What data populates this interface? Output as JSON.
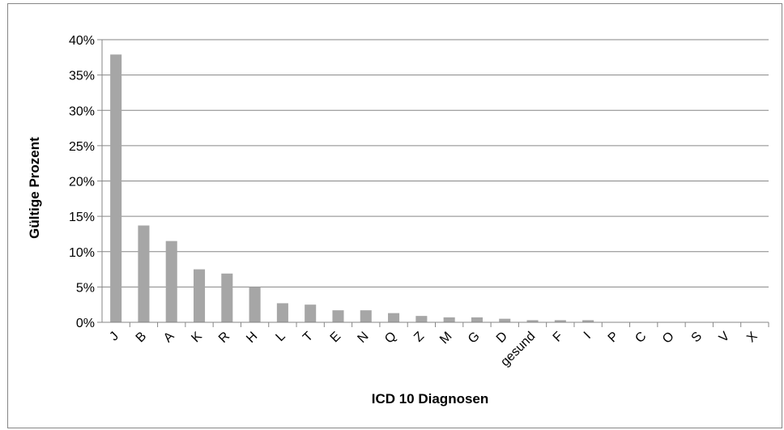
{
  "chart_data": {
    "type": "bar",
    "title": "",
    "xlabel": "ICD 10 Diagnosen",
    "ylabel": "Gültige Prozent",
    "categories": [
      "J",
      "B",
      "A",
      "K",
      "R",
      "H",
      "L",
      "T",
      "E",
      "N",
      "Q",
      "Z",
      "M",
      "G",
      "D",
      "gesund",
      "F",
      "I",
      "P",
      "C",
      "O",
      "S",
      "V",
      "X"
    ],
    "values": [
      37.9,
      13.7,
      11.5,
      7.5,
      6.9,
      5.0,
      2.7,
      2.5,
      1.7,
      1.7,
      1.3,
      0.9,
      0.7,
      0.7,
      0.5,
      0.3,
      0.3,
      0.3,
      0.0,
      0.0,
      0.0,
      0.0,
      0.0,
      0.0
    ],
    "ylim": [
      0,
      40
    ],
    "yticks": [
      "0%",
      "5%",
      "10%",
      "15%",
      "20%",
      "25%",
      "30%",
      "35%",
      "40%"
    ],
    "grid": true,
    "bar_color": "#a6a6a6"
  }
}
